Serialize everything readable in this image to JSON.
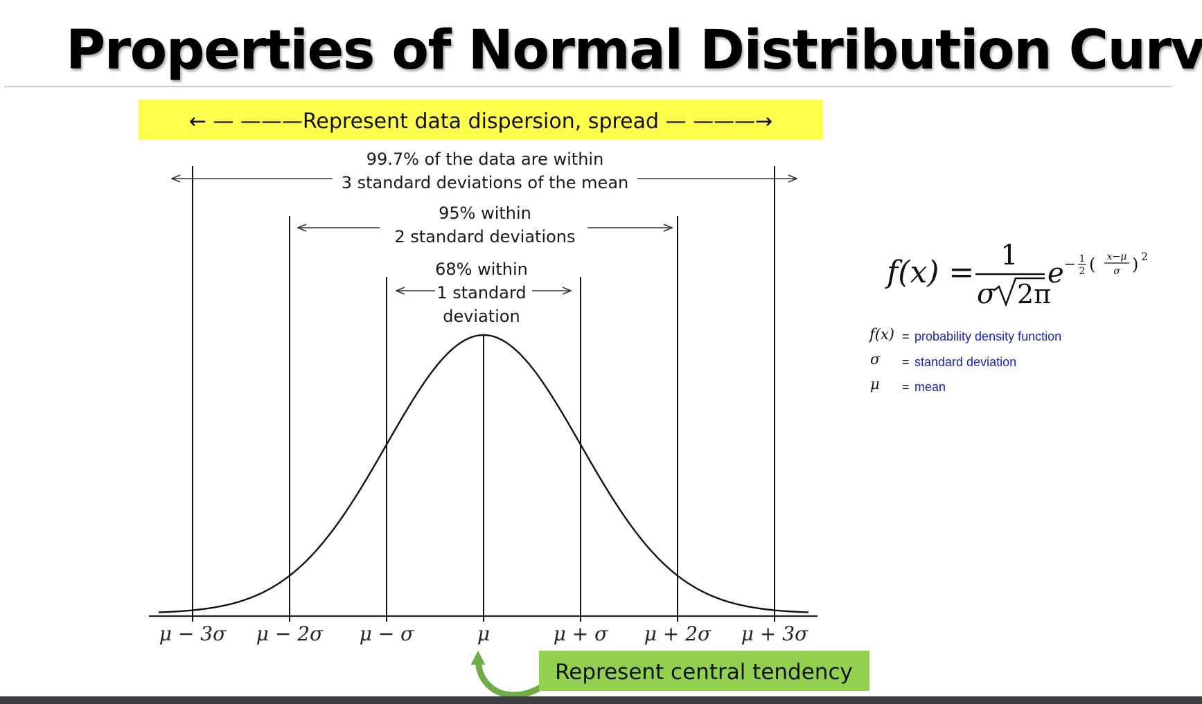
{
  "title": "Properties of Normal Distribution Curve",
  "dispersion_banner": {
    "label": "← — ———Represent data dispersion, spread — ———→",
    "color": "#ffff4d"
  },
  "central_banner": {
    "label": "Represent central tendency",
    "color": "#92d050",
    "arrow_color": "#70ad47"
  },
  "annotations": {
    "three_sd": {
      "line1": "99.7% of the data are within",
      "line2": "3 standard deviations of the mean"
    },
    "two_sd": {
      "line1": "95% within",
      "line2": "2 standard deviations"
    },
    "one_sd": {
      "line1": "68% within",
      "line2": "1 standard",
      "line3": "deviation"
    }
  },
  "axis": {
    "ticks": [
      {
        "sd": -3,
        "label": "μ − 3σ"
      },
      {
        "sd": -2,
        "label": "μ − 2σ"
      },
      {
        "sd": -1,
        "label": "μ − σ"
      },
      {
        "sd": 0,
        "label": "μ"
      },
      {
        "sd": 1,
        "label": "μ + σ"
      },
      {
        "sd": 2,
        "label": "μ + 2σ"
      },
      {
        "sd": 3,
        "label": "μ + 3σ"
      }
    ]
  },
  "formula": {
    "lhs": "f(x) =",
    "numerator": "1",
    "denominator_sigma": "σ",
    "denominator_radicand": "2π",
    "base": "e",
    "exponent_sign": "−",
    "exponent_frac_num": "1",
    "exponent_frac_den": "2",
    "exponent_inner_num": "x−μ",
    "exponent_inner_den": "σ",
    "exponent_power": "2"
  },
  "legend": [
    {
      "symbol": "f(x)",
      "eq": "=",
      "definition": "probability density function"
    },
    {
      "symbol": "σ",
      "eq": "=",
      "definition": "standard deviation"
    },
    {
      "symbol": "μ",
      "eq": "=",
      "definition": "mean"
    }
  ]
}
